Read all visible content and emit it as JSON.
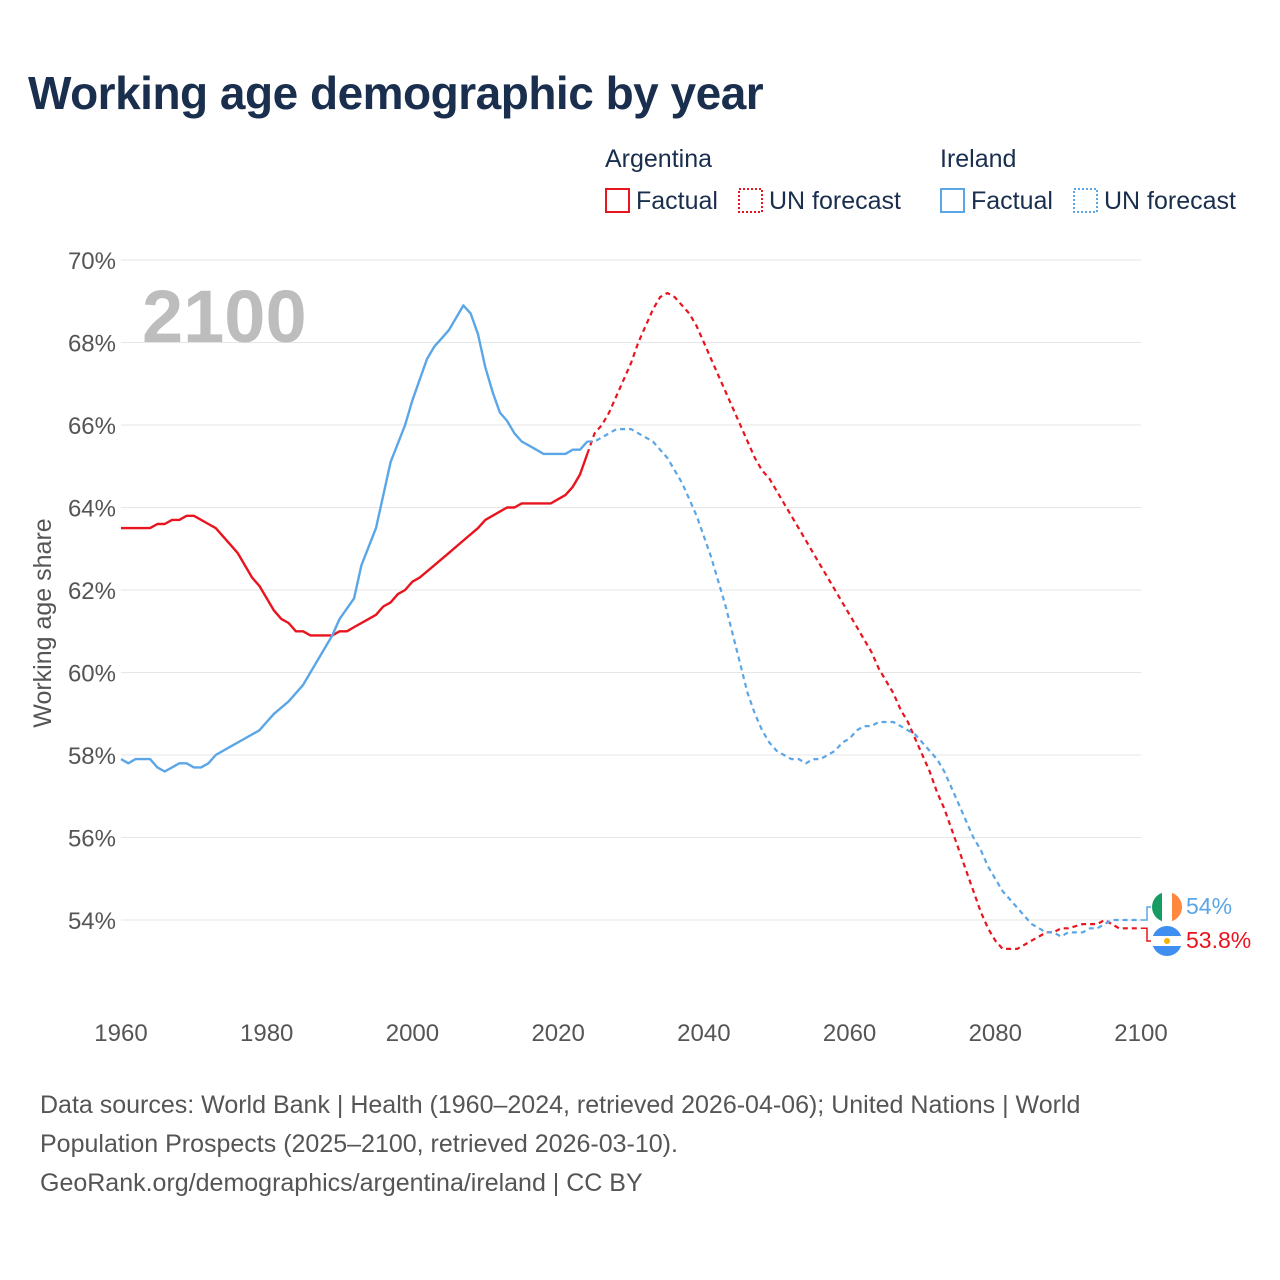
{
  "title": "Working age demographic by year",
  "watermark_year": "2100",
  "legend": {
    "groups": [
      {
        "country": "Argentina",
        "factual_label": "Factual",
        "forecast_label": "UN forecast",
        "color": "#e8141e"
      },
      {
        "country": "Ireland",
        "factual_label": "Factual",
        "forecast_label": "UN forecast",
        "color": "#5ba6e6"
      }
    ]
  },
  "source": {
    "line1": "Data sources: World Bank | Health (1960–2024, retrieved 2026-04-06); United Nations | World",
    "line2": "Population Prospects (2025–2100, retrieved 2026-03-10).",
    "line3": "GeoRank.org/demographics/argentina/ireland | CC BY"
  },
  "chart_data": {
    "type": "line",
    "title": "Working age demographic by year",
    "xlabel": "",
    "ylabel": "Working age share",
    "xlim": [
      1960,
      2100
    ],
    "ylim": [
      52,
      70
    ],
    "x_ticks": [
      1960,
      1980,
      2000,
      2020,
      2040,
      2060,
      2080,
      2100
    ],
    "x_tick_labels": [
      "1960",
      "1980",
      "2000",
      "2020",
      "2040",
      "2060",
      "2080",
      "2100"
    ],
    "y_ticks": [
      54,
      56,
      58,
      60,
      62,
      64,
      66,
      68,
      70
    ],
    "y_tick_labels": [
      "54%",
      "56%",
      "58%",
      "60%",
      "62%",
      "64%",
      "66%",
      "68%",
      "70%"
    ],
    "grid": true,
    "factual_end_year": 2024,
    "series": [
      {
        "name": "Argentina",
        "color": "#e8141e",
        "end_label": "53.8%",
        "flag": "argentina-flag",
        "points": [
          [
            1960,
            63.5
          ],
          [
            1964,
            63.5
          ],
          [
            1965,
            63.6
          ],
          [
            1966,
            63.6
          ],
          [
            1967,
            63.7
          ],
          [
            1968,
            63.7
          ],
          [
            1969,
            63.8
          ],
          [
            1970,
            63.8
          ],
          [
            1972,
            63.6
          ],
          [
            1973,
            63.5
          ],
          [
            1975,
            63.1
          ],
          [
            1976,
            62.9
          ],
          [
            1978,
            62.3
          ],
          [
            1979,
            62.1
          ],
          [
            1981,
            61.5
          ],
          [
            1982,
            61.3
          ],
          [
            1983,
            61.2
          ],
          [
            1984,
            61.0
          ],
          [
            1985,
            61.0
          ],
          [
            1986,
            60.9
          ],
          [
            1989,
            60.9
          ],
          [
            1990,
            61.0
          ],
          [
            1991,
            61.0
          ],
          [
            1992,
            61.1
          ],
          [
            1994,
            61.3
          ],
          [
            1995,
            61.4
          ],
          [
            1996,
            61.6
          ],
          [
            1997,
            61.7
          ],
          [
            1998,
            61.9
          ],
          [
            1999,
            62.0
          ],
          [
            2000,
            62.2
          ],
          [
            2001,
            62.3
          ],
          [
            2003,
            62.6
          ],
          [
            2005,
            62.9
          ],
          [
            2007,
            63.2
          ],
          [
            2009,
            63.5
          ],
          [
            2010,
            63.7
          ],
          [
            2012,
            63.9
          ],
          [
            2013,
            64.0
          ],
          [
            2014,
            64.0
          ],
          [
            2015,
            64.1
          ],
          [
            2019,
            64.1
          ],
          [
            2020,
            64.2
          ],
          [
            2021,
            64.3
          ],
          [
            2022,
            64.5
          ],
          [
            2023,
            64.8
          ],
          [
            2024,
            65.3
          ],
          [
            2025,
            65.8
          ],
          [
            2026,
            66.0
          ],
          [
            2027,
            66.3
          ],
          [
            2028,
            66.7
          ],
          [
            2029,
            67.1
          ],
          [
            2030,
            67.5
          ],
          [
            2031,
            68.0
          ],
          [
            2032,
            68.4
          ],
          [
            2033,
            68.8
          ],
          [
            2034,
            69.1
          ],
          [
            2035,
            69.2
          ],
          [
            2036,
            69.1
          ],
          [
            2037,
            68.9
          ],
          [
            2038,
            68.7
          ],
          [
            2039,
            68.4
          ],
          [
            2040,
            68.0
          ],
          [
            2041,
            67.6
          ],
          [
            2042,
            67.2
          ],
          [
            2043,
            66.8
          ],
          [
            2044,
            66.4
          ],
          [
            2045,
            66.0
          ],
          [
            2046,
            65.6
          ],
          [
            2047,
            65.2
          ],
          [
            2048,
            64.9
          ],
          [
            2049,
            64.7
          ],
          [
            2050,
            64.4
          ],
          [
            2051,
            64.1
          ],
          [
            2052,
            63.8
          ],
          [
            2053,
            63.5
          ],
          [
            2054,
            63.2
          ],
          [
            2055,
            62.9
          ],
          [
            2056,
            62.6
          ],
          [
            2057,
            62.3
          ],
          [
            2058,
            62.0
          ],
          [
            2059,
            61.7
          ],
          [
            2060,
            61.4
          ],
          [
            2061,
            61.1
          ],
          [
            2062,
            60.8
          ],
          [
            2063,
            60.5
          ],
          [
            2064,
            60.1
          ],
          [
            2065,
            59.8
          ],
          [
            2066,
            59.5
          ],
          [
            2067,
            59.1
          ],
          [
            2068,
            58.8
          ],
          [
            2069,
            58.4
          ],
          [
            2070,
            58.0
          ],
          [
            2071,
            57.6
          ],
          [
            2072,
            57.1
          ],
          [
            2073,
            56.7
          ],
          [
            2074,
            56.2
          ],
          [
            2075,
            55.7
          ],
          [
            2076,
            55.2
          ],
          [
            2077,
            54.7
          ],
          [
            2078,
            54.2
          ],
          [
            2079,
            53.8
          ],
          [
            2080,
            53.5
          ],
          [
            2081,
            53.3
          ],
          [
            2082,
            53.3
          ],
          [
            2083,
            53.3
          ],
          [
            2084,
            53.4
          ],
          [
            2085,
            53.5
          ],
          [
            2086,
            53.6
          ],
          [
            2087,
            53.7
          ],
          [
            2088,
            53.7
          ],
          [
            2089,
            53.8
          ],
          [
            2090,
            53.8
          ],
          [
            2092,
            53.9
          ],
          [
            2093,
            53.9
          ],
          [
            2094,
            53.9
          ],
          [
            2095,
            54.0
          ],
          [
            2096,
            53.9
          ],
          [
            2097,
            53.8
          ],
          [
            2100,
            53.8
          ]
        ]
      },
      {
        "name": "Ireland",
        "color": "#5ba6e6",
        "end_label": "54%",
        "flag": "ireland-flag",
        "points": [
          [
            1960,
            57.9
          ],
          [
            1961,
            57.8
          ],
          [
            1962,
            57.9
          ],
          [
            1964,
            57.9
          ],
          [
            1965,
            57.7
          ],
          [
            1966,
            57.6
          ],
          [
            1967,
            57.7
          ],
          [
            1968,
            57.8
          ],
          [
            1969,
            57.8
          ],
          [
            1970,
            57.7
          ],
          [
            1971,
            57.7
          ],
          [
            1972,
            57.8
          ],
          [
            1973,
            58.0
          ],
          [
            1975,
            58.2
          ],
          [
            1977,
            58.4
          ],
          [
            1979,
            58.6
          ],
          [
            1980,
            58.8
          ],
          [
            1981,
            59.0
          ],
          [
            1983,
            59.3
          ],
          [
            1985,
            59.7
          ],
          [
            1987,
            60.3
          ],
          [
            1989,
            60.9
          ],
          [
            1990,
            61.3
          ],
          [
            1992,
            61.8
          ],
          [
            1993,
            62.6
          ],
          [
            1995,
            63.5
          ],
          [
            1996,
            64.3
          ],
          [
            1997,
            65.1
          ],
          [
            1999,
            66.0
          ],
          [
            2000,
            66.6
          ],
          [
            2001,
            67.1
          ],
          [
            2002,
            67.6
          ],
          [
            2003,
            67.9
          ],
          [
            2004,
            68.1
          ],
          [
            2005,
            68.3
          ],
          [
            2006,
            68.6
          ],
          [
            2007,
            68.9
          ],
          [
            2008,
            68.7
          ],
          [
            2009,
            68.2
          ],
          [
            2010,
            67.4
          ],
          [
            2011,
            66.8
          ],
          [
            2012,
            66.3
          ],
          [
            2013,
            66.1
          ],
          [
            2014,
            65.8
          ],
          [
            2015,
            65.6
          ],
          [
            2016,
            65.5
          ],
          [
            2017,
            65.4
          ],
          [
            2018,
            65.3
          ],
          [
            2021,
            65.3
          ],
          [
            2022,
            65.4
          ],
          [
            2023,
            65.4
          ],
          [
            2024,
            65.6
          ],
          [
            2025,
            65.6
          ],
          [
            2026,
            65.7
          ],
          [
            2027,
            65.8
          ],
          [
            2028,
            65.9
          ],
          [
            2030,
            65.9
          ],
          [
            2031,
            65.8
          ],
          [
            2032,
            65.7
          ],
          [
            2033,
            65.6
          ],
          [
            2034,
            65.4
          ],
          [
            2035,
            65.2
          ],
          [
            2036,
            64.9
          ],
          [
            2037,
            64.6
          ],
          [
            2038,
            64.2
          ],
          [
            2039,
            63.8
          ],
          [
            2040,
            63.3
          ],
          [
            2041,
            62.8
          ],
          [
            2042,
            62.2
          ],
          [
            2043,
            61.6
          ],
          [
            2044,
            60.9
          ],
          [
            2045,
            60.2
          ],
          [
            2046,
            59.5
          ],
          [
            2047,
            59.0
          ],
          [
            2048,
            58.6
          ],
          [
            2049,
            58.3
          ],
          [
            2050,
            58.1
          ],
          [
            2051,
            58.0
          ],
          [
            2052,
            57.9
          ],
          [
            2053,
            57.9
          ],
          [
            2054,
            57.8
          ],
          [
            2055,
            57.9
          ],
          [
            2056,
            57.9
          ],
          [
            2057,
            58.0
          ],
          [
            2058,
            58.1
          ],
          [
            2059,
            58.3
          ],
          [
            2060,
            58.4
          ],
          [
            2061,
            58.6
          ],
          [
            2062,
            58.7
          ],
          [
            2063,
            58.7
          ],
          [
            2064,
            58.8
          ],
          [
            2066,
            58.8
          ],
          [
            2067,
            58.7
          ],
          [
            2068,
            58.6
          ],
          [
            2069,
            58.5
          ],
          [
            2070,
            58.3
          ],
          [
            2071,
            58.1
          ],
          [
            2072,
            57.9
          ],
          [
            2073,
            57.6
          ],
          [
            2074,
            57.2
          ],
          [
            2075,
            56.8
          ],
          [
            2076,
            56.4
          ],
          [
            2077,
            56.0
          ],
          [
            2078,
            55.7
          ],
          [
            2079,
            55.3
          ],
          [
            2080,
            55.0
          ],
          [
            2081,
            54.7
          ],
          [
            2082,
            54.5
          ],
          [
            2083,
            54.3
          ],
          [
            2084,
            54.1
          ],
          [
            2085,
            53.9
          ],
          [
            2086,
            53.8
          ],
          [
            2087,
            53.7
          ],
          [
            2088,
            53.7
          ],
          [
            2089,
            53.6
          ],
          [
            2090,
            53.7
          ],
          [
            2091,
            53.7
          ],
          [
            2092,
            53.7
          ],
          [
            2093,
            53.8
          ],
          [
            2094,
            53.8
          ],
          [
            2095,
            53.9
          ],
          [
            2096,
            54.0
          ],
          [
            2100,
            54.0
          ]
        ]
      }
    ]
  }
}
